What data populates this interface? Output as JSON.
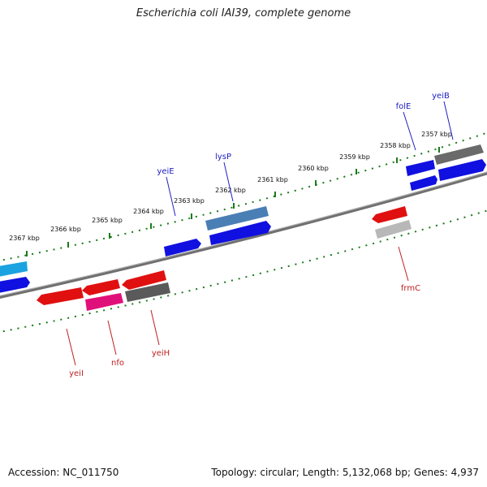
{
  "title": "Escherichia coli IAI39, complete genome",
  "footer": {
    "accession": "Accession: NC_011750",
    "summary": "Topology: circular; Length: 5,132,068 bp; Genes: 4,937"
  },
  "colors": {
    "forward_strand_gene": "#1010e0",
    "reverse_strand_gene": "#e01010",
    "backbone": "#888888",
    "tick": "#1a7a1a",
    "forward_label": "#2020c0",
    "reverse_label": "#c02020"
  },
  "scale_labels": [
    "2357 kbp",
    "2358 kbp",
    "2359 kbp",
    "2360 kbp",
    "2361 kbp",
    "2362 kbp",
    "2363 kbp",
    "2364 kbp",
    "2365 kbp",
    "2366 kbp",
    "2367 kbp"
  ],
  "forward_labels": [
    "yeiB",
    "folE",
    "lysP",
    "yeiE"
  ],
  "reverse_labels": [
    "frmC",
    "yeiH",
    "nfo",
    "yeiI"
  ]
}
